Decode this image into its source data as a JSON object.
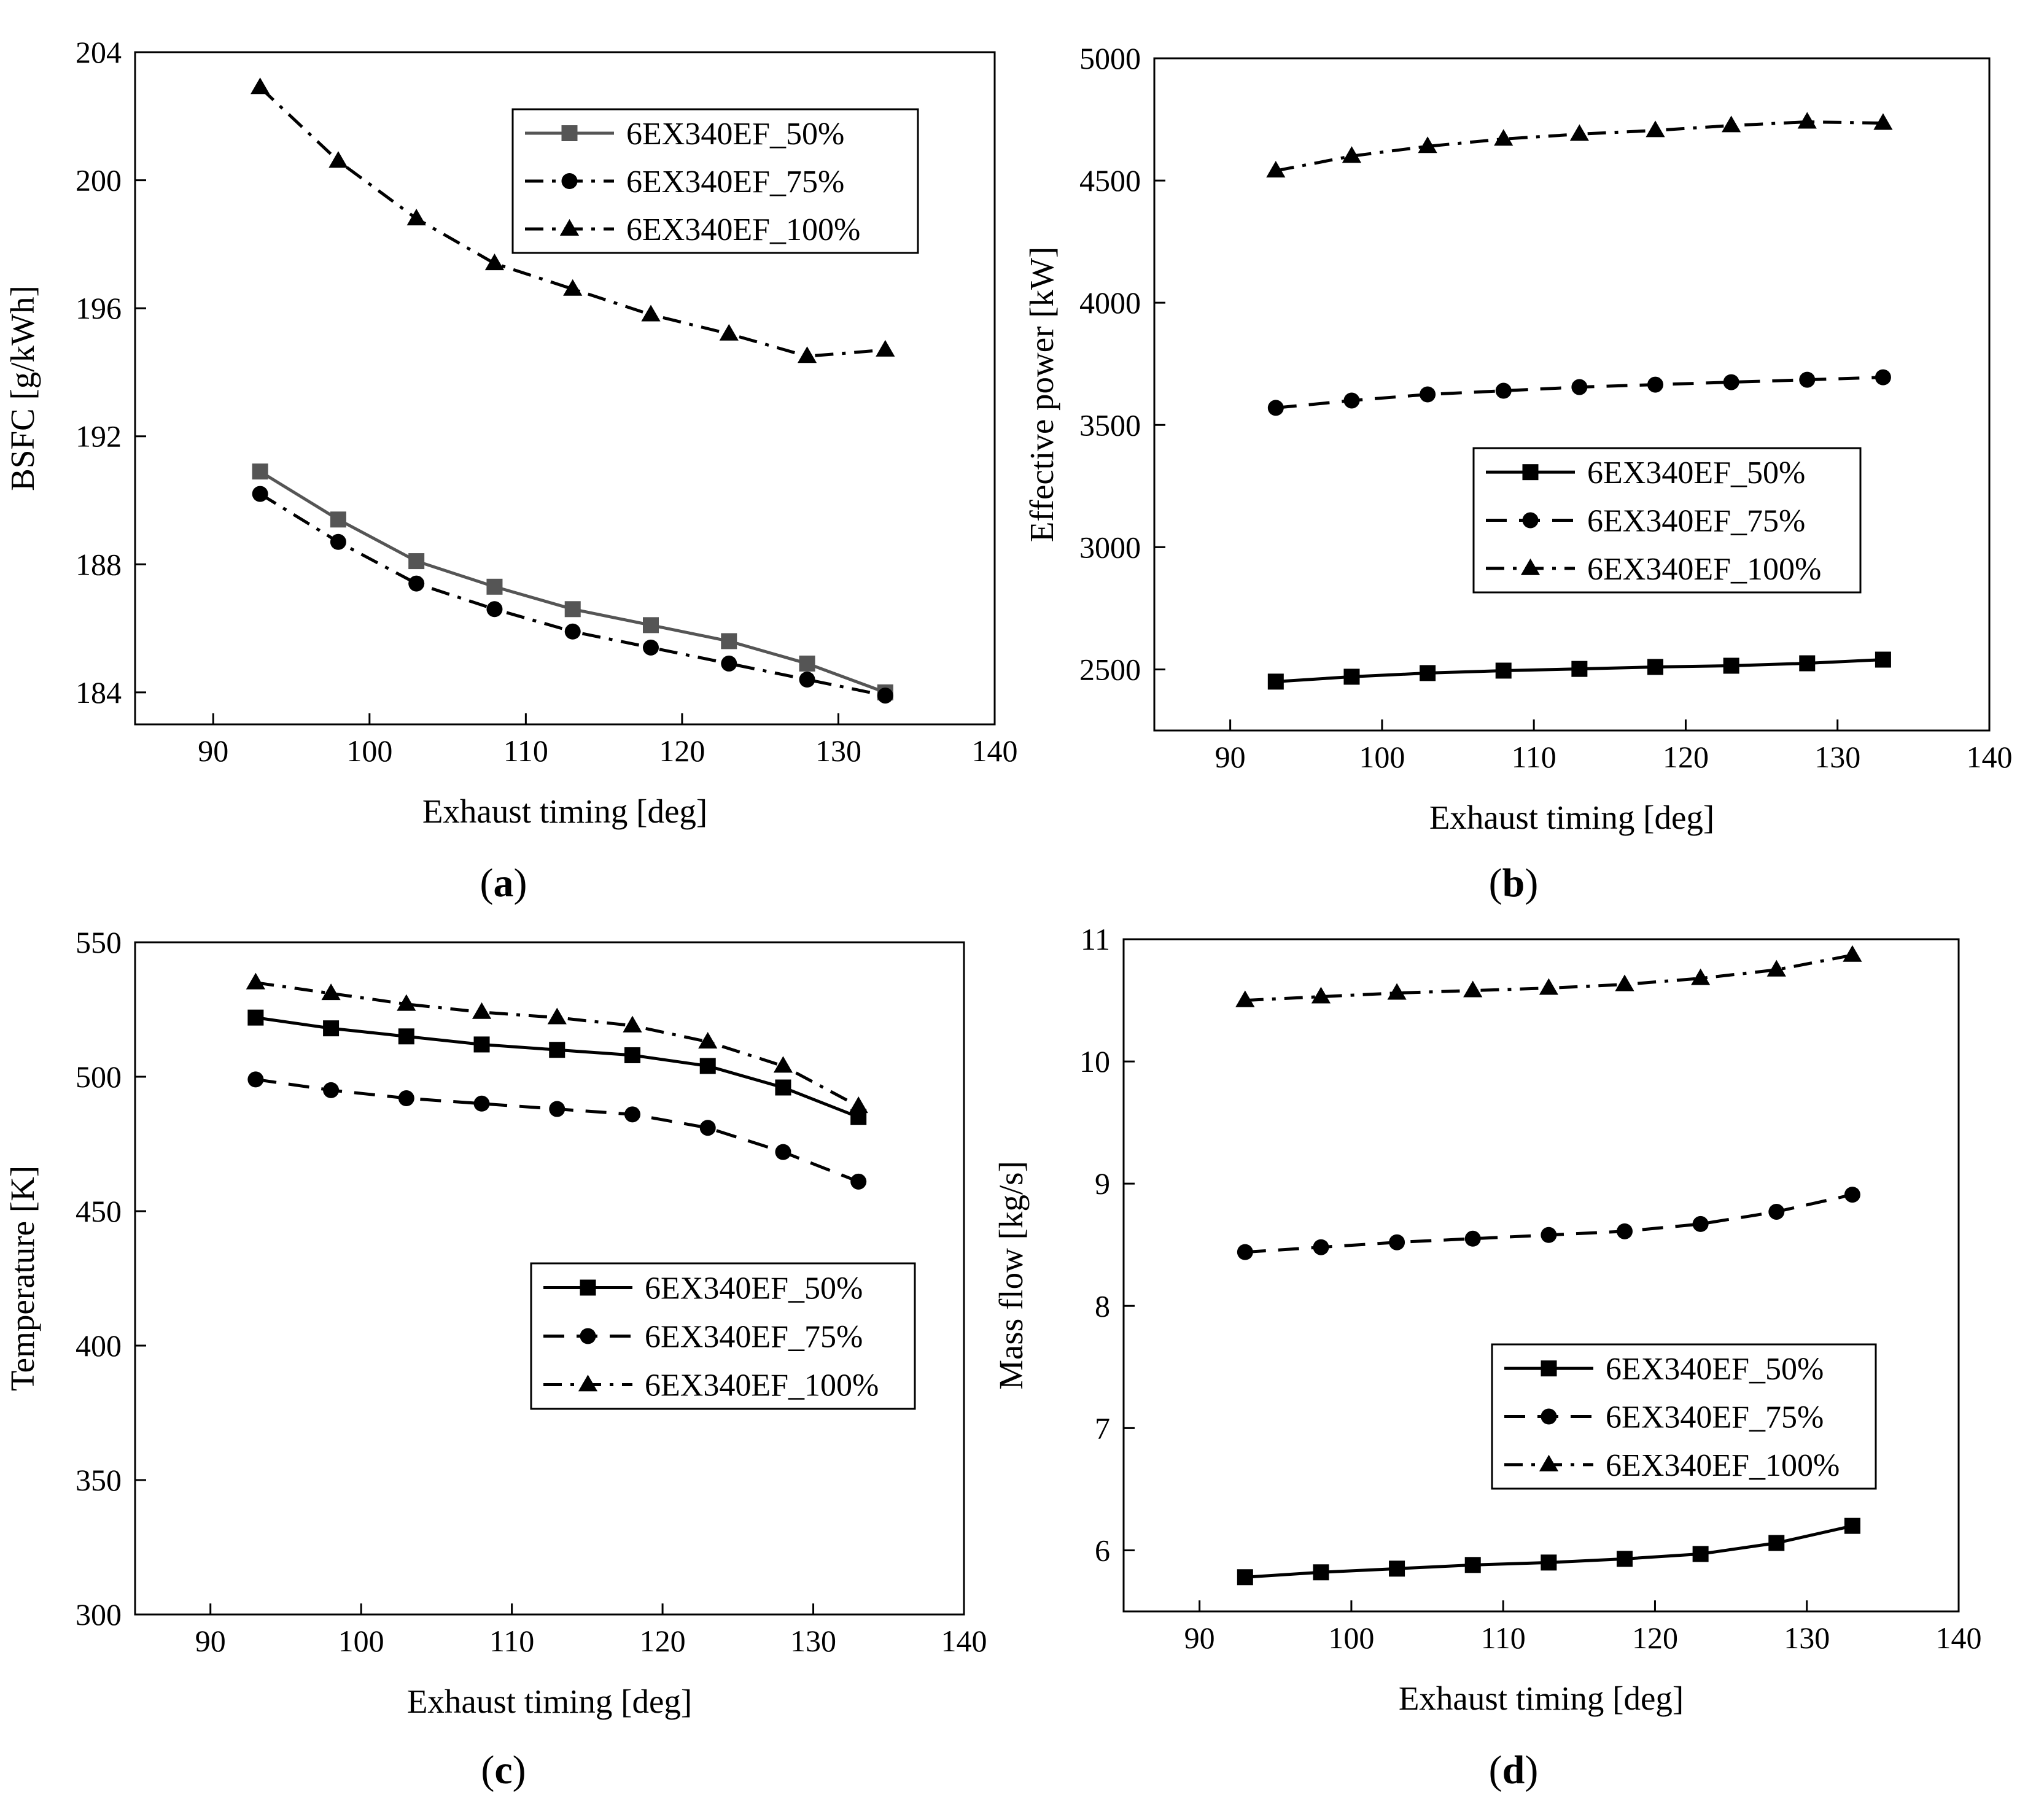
{
  "figure": {
    "captions": [
      "(a)",
      "(b)",
      "(c)",
      "(d)"
    ]
  },
  "chart_data": [
    {
      "id": "a",
      "type": "line",
      "caption_letter": "a",
      "xlabel": "Exhaust timing [deg]",
      "ylabel": "BSFC [g/kWh]",
      "xlim": [
        85,
        140
      ],
      "ylim": [
        183,
        204
      ],
      "xticks": [
        90,
        100,
        110,
        120,
        130,
        140
      ],
      "yticks": [
        184,
        188,
        192,
        196,
        200,
        204
      ],
      "x": [
        93,
        98,
        103,
        108,
        113,
        118,
        123,
        128,
        133
      ],
      "legend_position": "top-right",
      "series": [
        {
          "name": "6EX340EF_50%",
          "marker": "square",
          "line": "solid",
          "color": "#555555",
          "values": [
            190.9,
            189.4,
            188.1,
            187.3,
            186.6,
            186.1,
            185.6,
            184.9,
            184.0
          ]
        },
        {
          "name": "6EX340EF_75%",
          "marker": "circle",
          "line": "dashdot",
          "color": "#000000",
          "values": [
            190.2,
            188.7,
            187.4,
            186.6,
            185.9,
            185.4,
            184.9,
            184.4,
            183.9
          ]
        },
        {
          "name": "6EX340EF_100%",
          "marker": "triangle",
          "line": "dashdot",
          "color": "#000000",
          "values": [
            202.9,
            200.6,
            198.8,
            197.4,
            196.6,
            195.8,
            195.2,
            194.5,
            194.7
          ]
        }
      ]
    },
    {
      "id": "b",
      "type": "line",
      "caption_letter": "b",
      "xlabel": "Exhaust timing [deg]",
      "ylabel": "Effective power [kW]",
      "xlim": [
        85,
        140
      ],
      "ylim": [
        2250,
        5000
      ],
      "xticks": [
        90,
        100,
        110,
        120,
        130,
        140
      ],
      "yticks": [
        2500,
        3000,
        3500,
        4000,
        4500,
        5000
      ],
      "x": [
        93,
        98,
        103,
        108,
        113,
        118,
        123,
        128,
        133
      ],
      "legend_position": "center-right",
      "series": [
        {
          "name": "6EX340EF_50%",
          "marker": "square",
          "line": "solid",
          "color": "#000000",
          "values": [
            2450,
            2470,
            2485,
            2495,
            2502,
            2510,
            2515,
            2525,
            2540
          ]
        },
        {
          "name": "6EX340EF_75%",
          "marker": "circle",
          "line": "dash",
          "color": "#000000",
          "values": [
            3570,
            3600,
            3625,
            3640,
            3655,
            3665,
            3675,
            3685,
            3695
          ]
        },
        {
          "name": "6EX340EF_100%",
          "marker": "triangle",
          "line": "dashdot",
          "color": "#000000",
          "values": [
            4540,
            4600,
            4640,
            4670,
            4690,
            4705,
            4725,
            4740,
            4735
          ]
        }
      ]
    },
    {
      "id": "c",
      "type": "line",
      "caption_letter": "c",
      "xlabel": "Exhaust timing [deg]",
      "ylabel": "Temperature [K]",
      "xlim": [
        85,
        140
      ],
      "ylim": [
        300,
        550
      ],
      "xticks": [
        90,
        100,
        110,
        120,
        130,
        140
      ],
      "yticks": [
        300,
        350,
        400,
        450,
        500,
        550
      ],
      "x": [
        93,
        98,
        103,
        108,
        113,
        118,
        123,
        128,
        133
      ],
      "legend_position": "center-right",
      "series": [
        {
          "name": "6EX340EF_50%",
          "marker": "square",
          "line": "solid",
          "color": "#000000",
          "values": [
            522,
            518,
            515,
            512,
            510,
            508,
            504,
            496,
            485
          ]
        },
        {
          "name": "6EX340EF_75%",
          "marker": "circle",
          "line": "dash",
          "color": "#000000",
          "values": [
            499,
            495,
            492,
            490,
            488,
            486,
            481,
            472,
            461
          ]
        },
        {
          "name": "6EX340EF_100%",
          "marker": "triangle",
          "line": "dashdot",
          "color": "#000000",
          "values": [
            535,
            531,
            527,
            524,
            522,
            519,
            513,
            504,
            489
          ]
        }
      ]
    },
    {
      "id": "d",
      "type": "line",
      "caption_letter": "d",
      "xlabel": "Exhaust timing [deg]",
      "ylabel": "Mass flow [kg/s]",
      "xlim": [
        85,
        140
      ],
      "ylim": [
        5.5,
        11
      ],
      "xticks": [
        90,
        100,
        110,
        120,
        130,
        140
      ],
      "yticks": [
        6,
        7,
        8,
        9,
        10,
        11
      ],
      "x": [
        93,
        98,
        103,
        108,
        113,
        118,
        123,
        128,
        133
      ],
      "legend_position": "bottom-right",
      "series": [
        {
          "name": "6EX340EF_50%",
          "marker": "square",
          "line": "solid",
          "color": "#000000",
          "values": [
            5.78,
            5.82,
            5.85,
            5.88,
            5.9,
            5.93,
            5.97,
            6.06,
            6.2
          ]
        },
        {
          "name": "6EX340EF_75%",
          "marker": "circle",
          "line": "dash",
          "color": "#000000",
          "values": [
            8.44,
            8.48,
            8.52,
            8.55,
            8.58,
            8.61,
            8.67,
            8.77,
            8.91
          ]
        },
        {
          "name": "6EX340EF_100%",
          "marker": "triangle",
          "line": "dashdot",
          "color": "#000000",
          "values": [
            10.5,
            10.53,
            10.56,
            10.58,
            10.6,
            10.63,
            10.68,
            10.75,
            10.87
          ]
        }
      ]
    }
  ]
}
